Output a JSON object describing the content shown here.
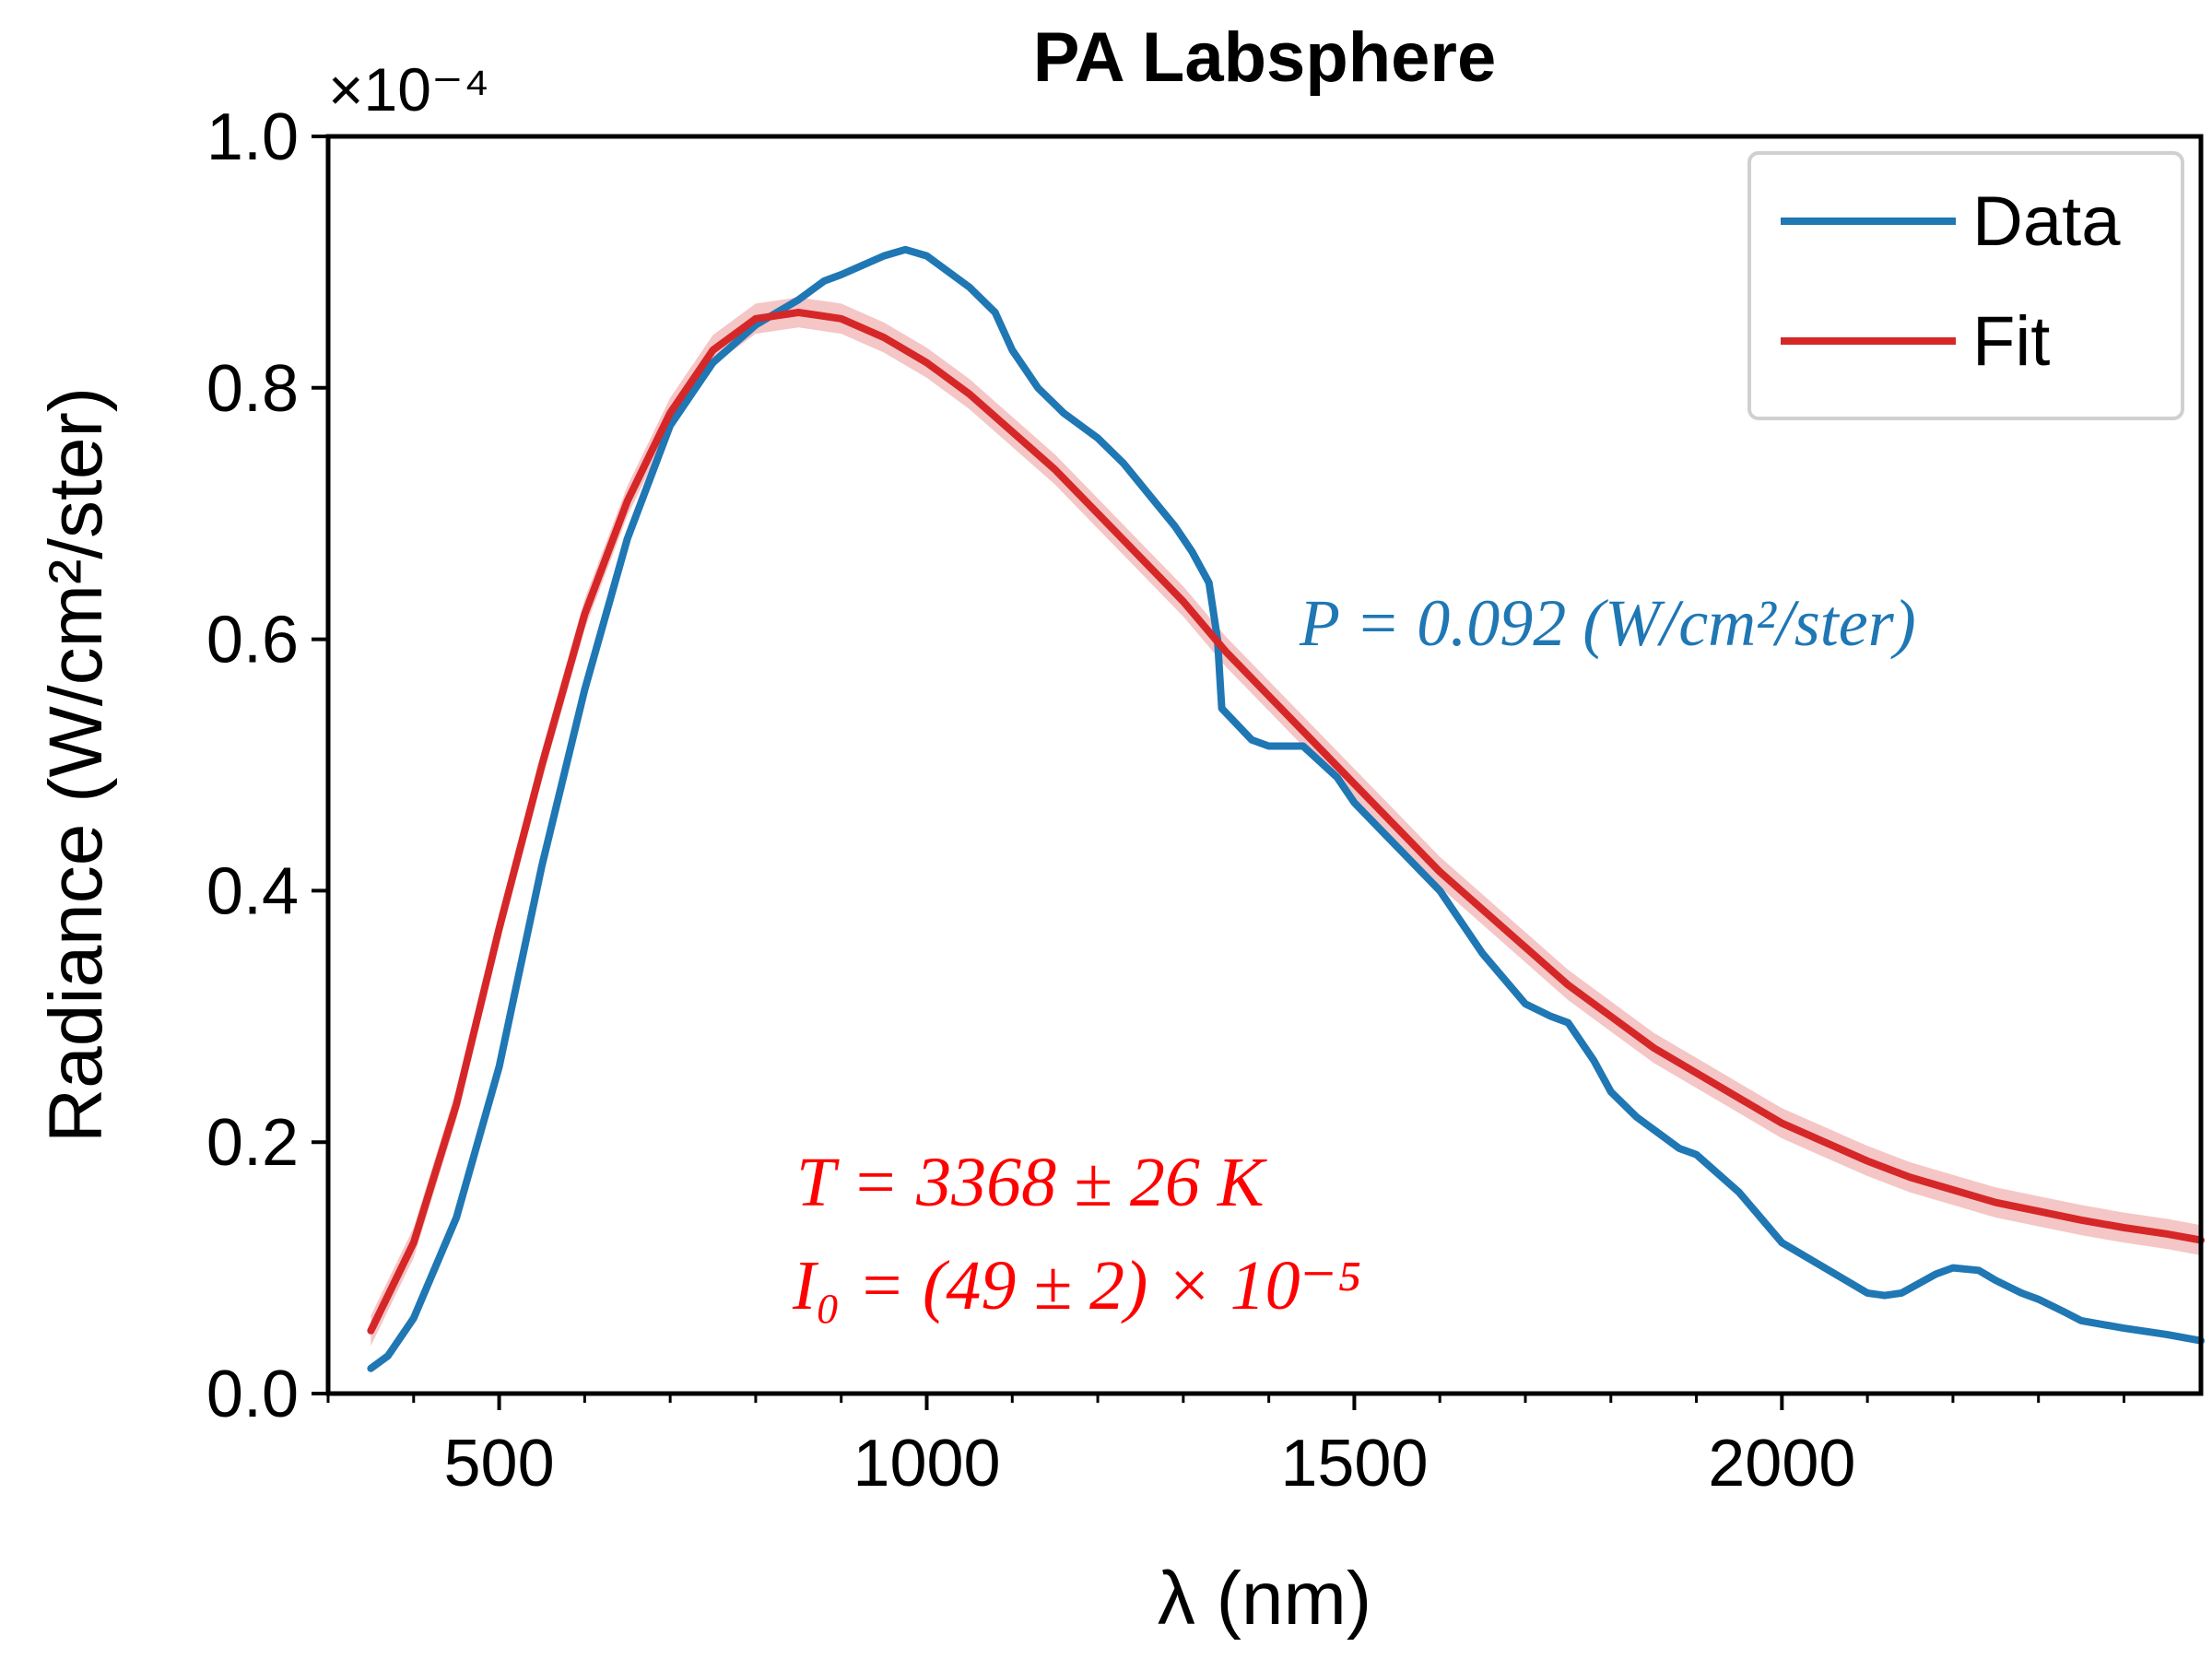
{
  "chart_data": {
    "type": "line",
    "title": "PA Labsphere",
    "xlabel": "λ (nm)",
    "ylabel": "Radiance (W/cm²/ster)",
    "y_scale_label": "×10⁻⁴",
    "xlim": [
      300,
      2490
    ],
    "ylim": [
      0,
      1.0
    ],
    "x_ticks": [
      500,
      1000,
      1500,
      2000
    ],
    "y_ticks": [
      0.0,
      0.2,
      0.4,
      0.6,
      0.8,
      1.0
    ],
    "y_tick_labels": [
      "0.0",
      "0.2",
      "0.4",
      "0.6",
      "0.8",
      "1.0"
    ],
    "x_tick_labels": [
      "500",
      "1000",
      "1500",
      "2000"
    ],
    "grid": false,
    "legend": "top-right",
    "series": [
      {
        "name": "Data",
        "color": "#1f77b4",
        "x": [
          350,
          370,
          400,
          450,
          500,
          550,
          600,
          650,
          700,
          750,
          800,
          850,
          880,
          900,
          950,
          975,
          1000,
          1050,
          1080,
          1100,
          1130,
          1160,
          1180,
          1200,
          1230,
          1260,
          1290,
          1310,
          1330,
          1340,
          1345,
          1380,
          1400,
          1440,
          1480,
          1500,
          1550,
          1600,
          1650,
          1700,
          1730,
          1750,
          1780,
          1800,
          1830,
          1860,
          1880,
          1900,
          1950,
          2000,
          2050,
          2100,
          2120,
          2140,
          2180,
          2200,
          2230,
          2250,
          2280,
          2300,
          2330,
          2350,
          2400,
          2450,
          2490
        ],
        "y": [
          0.02,
          0.03,
          0.06,
          0.14,
          0.26,
          0.42,
          0.56,
          0.68,
          0.77,
          0.82,
          0.85,
          0.87,
          0.885,
          0.89,
          0.905,
          0.91,
          0.905,
          0.88,
          0.86,
          0.83,
          0.8,
          0.78,
          0.77,
          0.76,
          0.74,
          0.715,
          0.69,
          0.67,
          0.645,
          0.6,
          0.545,
          0.52,
          0.515,
          0.515,
          0.49,
          0.47,
          0.435,
          0.4,
          0.35,
          0.31,
          0.3,
          0.295,
          0.265,
          0.24,
          0.22,
          0.205,
          0.195,
          0.19,
          0.16,
          0.12,
          0.1,
          0.08,
          0.078,
          0.08,
          0.095,
          0.1,
          0.098,
          0.09,
          0.08,
          0.075,
          0.065,
          0.058,
          0.052,
          0.047,
          0.042
        ]
      },
      {
        "name": "Fit",
        "color": "#d62728",
        "band_color": "#f2b8b8",
        "x": [
          350,
          400,
          450,
          500,
          550,
          600,
          650,
          700,
          750,
          800,
          850,
          900,
          950,
          1000,
          1050,
          1100,
          1150,
          1200,
          1250,
          1300,
          1350,
          1400,
          1450,
          1500,
          1550,
          1600,
          1650,
          1700,
          1750,
          1800,
          1850,
          1900,
          1950,
          2000,
          2050,
          2100,
          2150,
          2200,
          2250,
          2300,
          2350,
          2400,
          2450,
          2490
        ],
        "y": [
          0.05,
          0.12,
          0.23,
          0.37,
          0.5,
          0.62,
          0.71,
          0.78,
          0.83,
          0.855,
          0.86,
          0.855,
          0.84,
          0.82,
          0.795,
          0.765,
          0.735,
          0.7,
          0.665,
          0.63,
          0.59,
          0.555,
          0.52,
          0.485,
          0.45,
          0.415,
          0.385,
          0.355,
          0.325,
          0.3,
          0.275,
          0.255,
          0.235,
          0.215,
          0.2,
          0.185,
          0.172,
          0.162,
          0.152,
          0.145,
          0.138,
          0.132,
          0.127,
          0.122
        ],
        "band_halfwidth": 0.012
      }
    ],
    "annotations": {
      "power": "P = 0.092 (W/cm²/ster)",
      "temperature": "T = 3368 ± 26 K",
      "intensity": "I₀ = (49 ± 2) × 10⁻⁵"
    },
    "annotation_colors": {
      "power": "#1f77b4",
      "fit": "#ff0000"
    }
  }
}
